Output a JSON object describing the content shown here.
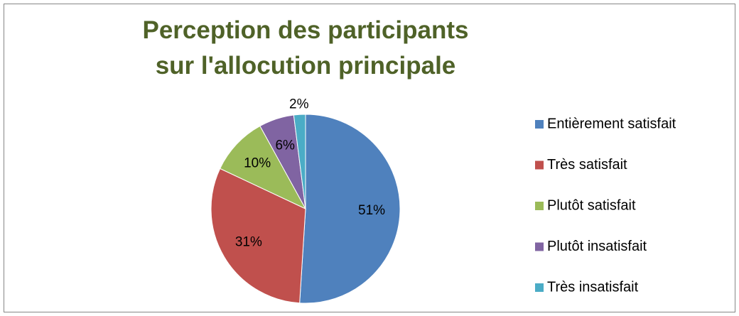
{
  "chart_data": {
    "type": "pie",
    "title": "Perception des participants sur l'allocution principale",
    "categories": [
      "Entièrement satisfait",
      "Très satisfait",
      "Plutôt satisfait",
      "Plutôt insatisfait",
      "Très insatisfait"
    ],
    "values": [
      51,
      31,
      10,
      6,
      2
    ],
    "value_labels": [
      "51%",
      "31%",
      "10%",
      "6%",
      "2%"
    ],
    "colors": [
      "#4f81bd",
      "#c0504d",
      "#9bbb59",
      "#8064a2",
      "#4bacc6"
    ],
    "legend": "right"
  }
}
